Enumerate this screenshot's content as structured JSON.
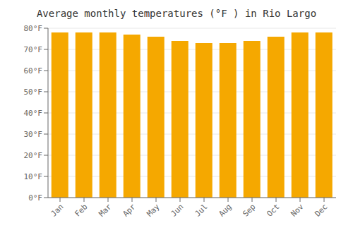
{
  "chart_data": {
    "type": "bar",
    "title": "Average monthly temperatures (°F ) in Rio Largo",
    "categories": [
      "Jan",
      "Feb",
      "Mar",
      "Apr",
      "May",
      "Jun",
      "Jul",
      "Aug",
      "Sep",
      "Oct",
      "Nov",
      "Dec"
    ],
    "values": [
      78,
      78,
      78,
      77,
      76,
      74,
      73,
      73,
      74,
      76,
      78,
      78
    ],
    "color": "#F5A800",
    "ylim": [
      0,
      80
    ],
    "yticks": [
      {
        "value": 0,
        "label": "0°F"
      },
      {
        "value": 10,
        "label": "10°F"
      },
      {
        "value": 20,
        "label": "20°F"
      },
      {
        "value": 30,
        "label": "30°F"
      },
      {
        "value": 40,
        "label": "40°F"
      },
      {
        "value": 50,
        "label": "50°F"
      },
      {
        "value": 60,
        "label": "60°F"
      },
      {
        "value": 70,
        "label": "70°F"
      },
      {
        "value": 80,
        "label": "80°F"
      }
    ],
    "grid": true
  }
}
